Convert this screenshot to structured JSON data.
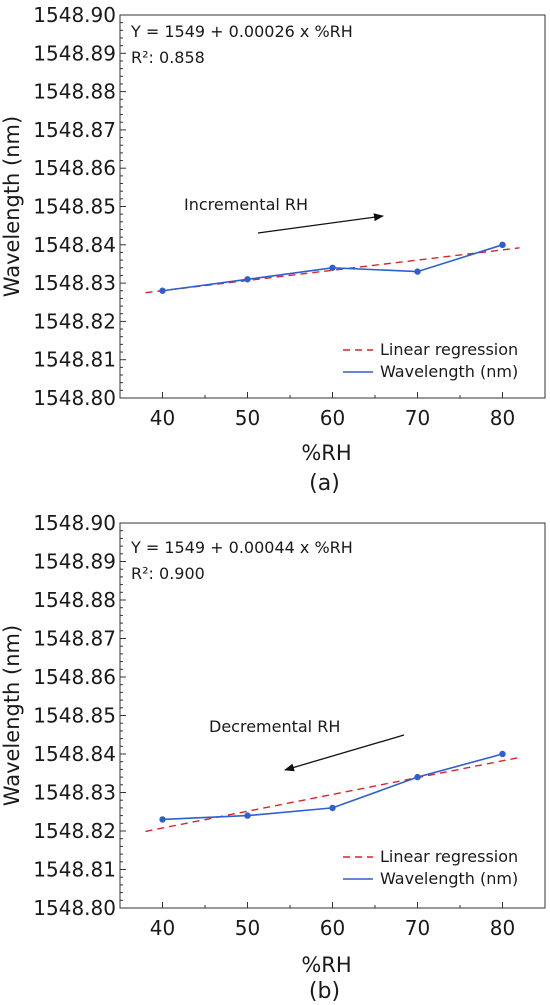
{
  "chart_data": [
    {
      "type": "line",
      "panel_label": "(a)",
      "xlabel": "%RH",
      "ylabel": "Wavelength (nm)",
      "xlim": [
        35,
        85
      ],
      "ylim": [
        1548.8,
        1548.9
      ],
      "x_ticks": [
        "40",
        "50",
        "60",
        "70",
        "80"
      ],
      "y_ticks": [
        "1548.90",
        "1548.89",
        "1548.88",
        "1548.87",
        "1548.86",
        "1548.85",
        "1548.84",
        "1548.83",
        "1548.82",
        "1548.81",
        "1548.80"
      ],
      "equation": "Y = 1549 + 0.00026 x %RH",
      "r2": "R²: 0.858",
      "annotation": "Incremental RH",
      "arrow_direction": "right",
      "legend": [
        "Linear regression",
        "Wavelength (nm)"
      ],
      "legend_position": "lower-right",
      "series": [
        {
          "name": "Wavelength (nm)",
          "style": "solid",
          "color": "#2e5fd0",
          "x": [
            40,
            50,
            60,
            70,
            80
          ],
          "y": [
            1548.828,
            1548.831,
            1548.834,
            1548.833,
            1548.84
          ]
        },
        {
          "name": "Linear regression",
          "style": "dashed",
          "color": "#d62728",
          "x": [
            38,
            82
          ],
          "y": [
            1548.8275,
            1548.8392
          ]
        }
      ]
    },
    {
      "type": "line",
      "panel_label": "(b)",
      "xlabel": "%RH",
      "ylabel": "Wavelength (nm)",
      "xlim": [
        35,
        85
      ],
      "ylim": [
        1548.8,
        1548.9
      ],
      "x_ticks": [
        "40",
        "50",
        "60",
        "70",
        "80"
      ],
      "y_ticks": [
        "1548.90",
        "1548.89",
        "1548.88",
        "1548.87",
        "1548.86",
        "1548.85",
        "1548.84",
        "1548.83",
        "1548.82",
        "1548.81",
        "1548.80"
      ],
      "equation": "Y = 1549 + 0.00044 x %RH",
      "r2": "R²: 0.900",
      "annotation": "Decremental RH",
      "arrow_direction": "left",
      "legend": [
        "Linear regression",
        "Wavelength (nm)"
      ],
      "legend_position": "lower-right",
      "series": [
        {
          "name": "Wavelength (nm)",
          "style": "solid",
          "color": "#2e5fd0",
          "x": [
            40,
            50,
            60,
            70,
            80
          ],
          "y": [
            1548.823,
            1548.824,
            1548.826,
            1548.834,
            1548.84
          ]
        },
        {
          "name": "Linear regression",
          "style": "dashed",
          "color": "#d62728",
          "x": [
            38,
            82
          ],
          "y": [
            1548.8199,
            1548.8391
          ]
        }
      ]
    }
  ]
}
